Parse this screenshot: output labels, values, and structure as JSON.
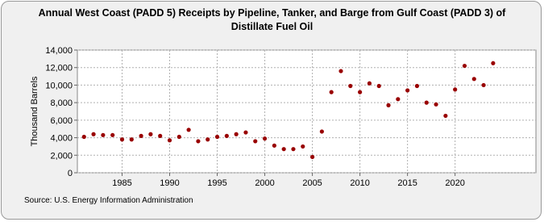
{
  "chart_data": {
    "type": "scatter",
    "title": "Annual West Coast (PADD 5) Receipts by Pipeline, Tanker, and Barge from Gulf Coast (PADD 3) of Distillate Fuel Oil",
    "ylabel": "Thousand Barrels",
    "source": "Source: U.S. Energy Information Administration",
    "color": "#990000",
    "grid": true,
    "x": [
      1981,
      1982,
      1983,
      1984,
      1985,
      1986,
      1987,
      1988,
      1989,
      1990,
      1991,
      1992,
      1993,
      1994,
      1995,
      1996,
      1997,
      1998,
      1999,
      2000,
      2001,
      2002,
      2003,
      2004,
      2005,
      2006,
      2007,
      2008,
      2009,
      2010,
      2011,
      2012,
      2013,
      2014,
      2015,
      2016,
      2017,
      2018,
      2019,
      2020,
      2021,
      2022,
      2023,
      2024
    ],
    "values": [
      4100,
      4400,
      4300,
      4300,
      3800,
      3800,
      4200,
      4400,
      4200,
      3700,
      4100,
      4900,
      3600,
      3800,
      4100,
      4200,
      4400,
      4600,
      3600,
      3900,
      3100,
      2700,
      2700,
      3000,
      1800,
      4700,
      9200,
      11600,
      9900,
      9200,
      10200,
      9900,
      7700,
      8400,
      9400,
      9900,
      8000,
      7800,
      6500,
      9500,
      12200,
      10700,
      10000,
      12500
    ],
    "xlim": [
      1980.3,
      2028.5
    ],
    "xticks": [
      1985,
      1990,
      1995,
      2000,
      2005,
      2010,
      2015,
      2020
    ],
    "ylim": [
      0,
      14000
    ],
    "yticks": [
      0,
      {
        "value": 2000,
        "label": "2,000"
      },
      {
        "value": 4000,
        "label": "4,000"
      },
      {
        "value": 6000,
        "label": "6,000"
      },
      {
        "value": 8000,
        "label": "8,000"
      },
      {
        "value": 10000,
        "label": "10,000"
      },
      {
        "value": 12000,
        "label": "12,000"
      },
      {
        "value": 14000,
        "label": "14,000"
      }
    ]
  }
}
